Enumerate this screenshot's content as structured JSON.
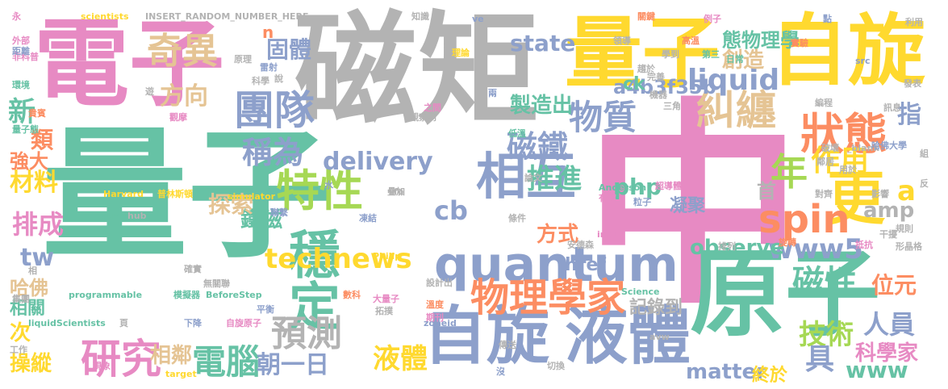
{
  "palette": {
    "teal": "#66c2a5",
    "orange": "#fc8d62",
    "blue": "#8da0cb",
    "pink": "#e78ac3",
    "green": "#a6d854",
    "yellow": "#ffd92f",
    "tan": "#e5c494",
    "gray": "#b3b3b3"
  },
  "words": [
    {
      "text": "量子",
      "color": "teal"
    },
    {
      "text": "中",
      "color": "pink"
    },
    {
      "text": "磁矩",
      "color": "gray"
    },
    {
      "text": "電子",
      "color": "pink"
    },
    {
      "text": "原子",
      "color": "teal"
    },
    {
      "text": "量子",
      "color": "yellow"
    },
    {
      "text": "自旋",
      "color": "yellow"
    },
    {
      "text": "自旋",
      "color": "blue"
    },
    {
      "text": "液體",
      "color": "blue"
    },
    {
      "text": "quantum",
      "color": "blue"
    },
    {
      "text": "更",
      "color": "yellow"
    },
    {
      "text": "狀態",
      "color": "orange"
    },
    {
      "text": "糾纏",
      "color": "tan"
    },
    {
      "text": "相互",
      "color": "blue"
    },
    {
      "text": "穩定",
      "color": "teal"
    },
    {
      "text": "特性",
      "color": "green"
    },
    {
      "text": "物理學家",
      "color": "orange"
    },
    {
      "text": "spin",
      "color": "orange"
    },
    {
      "text": "磁鐵",
      "color": "blue"
    },
    {
      "text": "團隊",
      "color": "blue"
    },
    {
      "text": "奇異",
      "color": "tan"
    },
    {
      "text": "研究",
      "color": "pink"
    },
    {
      "text": "電腦",
      "color": "teal"
    },
    {
      "text": "預測",
      "color": "gray"
    },
    {
      "text": "稱為",
      "color": "blue"
    },
    {
      "text": "technews",
      "color": "yellow"
    },
    {
      "text": "物質",
      "color": "blue"
    },
    {
      "text": "年",
      "color": "green"
    },
    {
      "text": "作用",
      "color": "yellow"
    },
    {
      "text": "liquid",
      "color": "blue"
    },
    {
      "text": "www5",
      "color": "blue"
    },
    {
      "text": "磁性",
      "color": "teal"
    },
    {
      "text": "技術",
      "color": "green"
    },
    {
      "text": "a",
      "color": "yellow"
    },
    {
      "text": "state",
      "color": "blue"
    },
    {
      "text": "固體",
      "color": "blue"
    },
    {
      "text": "delivery",
      "color": "blue"
    },
    {
      "text": "推進",
      "color": "teal"
    },
    {
      "text": "php",
      "color": "teal"
    },
    {
      "text": "cb",
      "color": "blue"
    },
    {
      "text": "tw",
      "color": "blue"
    },
    {
      "text": "方向",
      "color": "tan"
    },
    {
      "text": "新",
      "color": "teal"
    },
    {
      "text": "排成",
      "color": "pink"
    },
    {
      "text": "朝一日",
      "color": "blue"
    },
    {
      "text": "液體",
      "color": "yellow"
    },
    {
      "text": "相鄰",
      "color": "tan"
    },
    {
      "text": "a4b3f35b",
      "color": "blue"
    },
    {
      "text": "observe",
      "color": "teal"
    },
    {
      "text": "matter",
      "color": "blue"
    },
    {
      "text": "www",
      "color": "teal"
    },
    {
      "text": "人員",
      "color": "blue"
    },
    {
      "text": "具",
      "color": "blue"
    },
    {
      "text": "鐵磁",
      "color": "teal"
    },
    {
      "text": "創造",
      "color": "tan"
    },
    {
      "text": "態物理學",
      "color": "teal"
    },
    {
      "text": "製造出",
      "color": "teal"
    },
    {
      "text": "探索",
      "color": "tan"
    },
    {
      "text": "方式",
      "color": "orange"
    },
    {
      "text": "amp",
      "color": "gray"
    },
    {
      "text": "指",
      "color": "blue"
    },
    {
      "text": "位元",
      "color": "orange"
    },
    {
      "text": "科學家",
      "color": "pink"
    },
    {
      "text": "材料",
      "color": "yellow"
    },
    {
      "text": "類",
      "color": "orange"
    },
    {
      "text": "強大",
      "color": "orange"
    },
    {
      "text": "哈佛",
      "color": "tan"
    },
    {
      "text": "次",
      "color": "yellow"
    },
    {
      "text": "相關",
      "color": "teal"
    },
    {
      "text": "操縱",
      "color": "yellow"
    },
    {
      "text": "記錄到",
      "color": "gray"
    },
    {
      "text": "凝聚",
      "color": "blue"
    },
    {
      "text": "首",
      "color": "gray"
    },
    {
      "text": "href",
      "color": "blue"
    },
    {
      "text": "終於",
      "color": "yellow"
    },
    {
      "text": "ck",
      "color": "teal"
    },
    {
      "text": "n",
      "color": "orange"
    },
    {
      "text": "INSERT_RANDOM_NUMBER_HERE",
      "color": "gray"
    },
    {
      "text": "scientists",
      "color": "yellow"
    },
    {
      "text": "Harvard",
      "color": "yellow"
    },
    {
      "text": "普林斯頓",
      "color": "yellow"
    },
    {
      "text": "programmable",
      "color": "teal"
    },
    {
      "text": "liquidScientists",
      "color": "teal"
    },
    {
      "text": "BeforeStep",
      "color": "teal"
    },
    {
      "text": "模擬器",
      "color": "teal"
    },
    {
      "text": "simulator",
      "color": "yellow"
    },
    {
      "text": "Anderson",
      "color": "teal"
    },
    {
      "text": "超導體",
      "color": "pink"
    },
    {
      "text": "Science",
      "color": "teal"
    },
    {
      "text": "Philip",
      "color": "yellow"
    },
    {
      "text": "quest",
      "color": "teal"
    },
    {
      "text": "hub",
      "color": "gray"
    },
    {
      "text": "zoneid",
      "color": "blue"
    },
    {
      "text": "avw",
      "color": "gray"
    },
    {
      "text": "src",
      "color": "blue"
    },
    {
      "text": "_blank",
      "color": "gray"
    },
    {
      "text": "target",
      "color": "yellow"
    },
    {
      "text": "img",
      "color": "pink"
    },
    {
      "text": "知識",
      "color": "gray"
    },
    {
      "text": "原理",
      "color": "gray"
    },
    {
      "text": "理論",
      "color": "yellow"
    },
    {
      "text": "實驗",
      "color": "orange"
    },
    {
      "text": "利用",
      "color": "gray"
    },
    {
      "text": "發表",
      "color": "gray"
    },
    {
      "text": "點",
      "color": "blue"
    },
    {
      "text": "例子",
      "color": "pink"
    },
    {
      "text": "關鍵",
      "color": "orange"
    },
    {
      "text": "領導",
      "color": "gray"
    },
    {
      "text": "高溫",
      "color": "orange"
    },
    {
      "text": "學到",
      "color": "gray"
    },
    {
      "text": "第三",
      "color": "teal"
    },
    {
      "text": "日常",
      "color": "teal"
    },
    {
      "text": "趨於",
      "color": "gray"
    },
    {
      "text": "完善",
      "color": "gray"
    },
    {
      "text": "機器",
      "color": "gray"
    },
    {
      "text": "三角",
      "color": "gray"
    },
    {
      "text": "編程",
      "color": "gray"
    },
    {
      "text": "訊息",
      "color": "gray"
    },
    {
      "text": "哈佛大學",
      "color": "blue"
    },
    {
      "text": "破壞",
      "color": "gray"
    },
    {
      "text": "鄰居",
      "color": "gray"
    },
    {
      "text": "影響",
      "color": "gray"
    },
    {
      "text": "對齊",
      "color": "gray"
    },
    {
      "text": "用於",
      "color": "gray"
    },
    {
      "text": "粒子",
      "color": "blue"
    },
    {
      "text": "有趣",
      "color": "pink"
    },
    {
      "text": "論文",
      "color": "gray"
    },
    {
      "text": "條件",
      "color": "gray"
    },
    {
      "text": "凍結",
      "color": "blue"
    },
    {
      "text": "疊加",
      "color": "gray"
    },
    {
      "text": "低溫",
      "color": "teal"
    },
    {
      "text": "聯繫",
      "color": "blue"
    },
    {
      "text": "水",
      "color": "blue"
    },
    {
      "text": "安德森",
      "color": "gray"
    },
    {
      "text": "旋轉",
      "color": "orange"
    },
    {
      "text": "抵抗",
      "color": "pink"
    },
    {
      "text": "規則",
      "color": "gray"
    },
    {
      "text": "形晶格",
      "color": "gray"
    },
    {
      "text": "干擾",
      "color": "gray"
    },
    {
      "text": "排列",
      "color": "gray"
    },
    {
      "text": "確實",
      "color": "gray"
    },
    {
      "text": "無關聯",
      "color": "gray"
    },
    {
      "text": "平衡",
      "color": "blue"
    },
    {
      "text": "設計出",
      "color": "gray"
    },
    {
      "text": "數科",
      "color": "orange"
    },
    {
      "text": "大量子",
      "color": "pink"
    },
    {
      "text": "溫度",
      "color": "orange"
    },
    {
      "text": "拓撲",
      "color": "gray"
    },
    {
      "text": "期刊",
      "color": "pink"
    },
    {
      "text": "傳送",
      "color": "gray"
    },
    {
      "text": "切換",
      "color": "gray"
    },
    {
      "text": "下降",
      "color": "blue"
    },
    {
      "text": "自旋原子",
      "color": "pink"
    },
    {
      "text": "頁",
      "color": "gray"
    },
    {
      "text": "集團",
      "color": "gray"
    },
    {
      "text": "工作",
      "color": "gray"
    },
    {
      "text": "非科普",
      "color": "pink"
    },
    {
      "text": "距離",
      "color": "blue"
    },
    {
      "text": "外部",
      "color": "pink"
    },
    {
      "text": "環境",
      "color": "teal"
    },
    {
      "text": "貴賓",
      "color": "orange"
    },
    {
      "text": "量子態",
      "color": "teal"
    },
    {
      "text": "觀摩",
      "color": "pink"
    },
    {
      "text": "觀察到",
      "color": "gray"
    },
    {
      "text": "之間",
      "color": "pink"
    },
    {
      "text": "兩",
      "color": "blue"
    },
    {
      "text": "雷射",
      "color": "blue"
    },
    {
      "text": "科學",
      "color": "gray"
    },
    {
      "text": "說",
      "color": "gray"
    },
    {
      "text": "ve",
      "color": "blue"
    },
    {
      "text": "永",
      "color": "pink"
    },
    {
      "text": "現象",
      "color": "pink"
    },
    {
      "text": "fo",
      "color": "gray"
    },
    {
      "text": "遊",
      "color": "gray"
    },
    {
      "text": "沒",
      "color": "blue"
    },
    {
      "text": "反",
      "color": "gray"
    },
    {
      "text": "組",
      "color": "gray"
    },
    {
      "text": "相",
      "color": "gray"
    }
  ]
}
